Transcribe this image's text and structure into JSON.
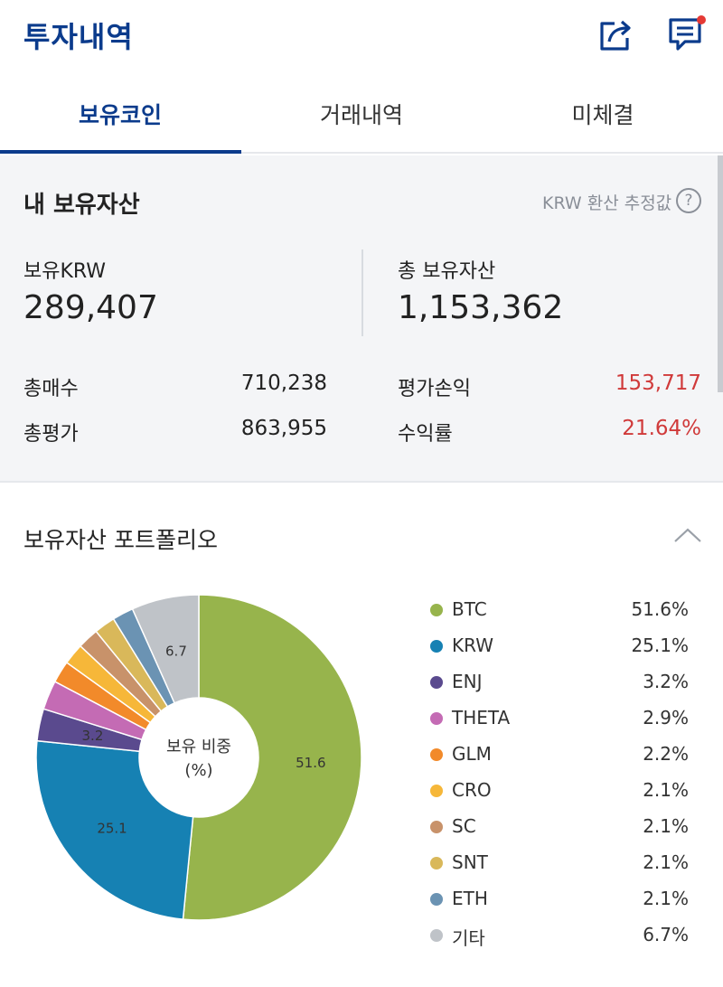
{
  "header": {
    "title": "투자내역",
    "share_icon": "share-icon",
    "chat_icon": "chat-icon"
  },
  "tabs": [
    {
      "label": "보유코인",
      "active": true
    },
    {
      "label": "거래내역",
      "active": false
    },
    {
      "label": "미체결",
      "active": false
    }
  ],
  "assets": {
    "title": "내 보유자산",
    "krw_estimate": "KRW 환산 추정값",
    "help": "?",
    "krw_label": "보유KRW",
    "krw_value": "289,407",
    "total_label": "총 보유자산",
    "total_value": "1,153,362",
    "buy_label": "총매수",
    "buy_value": "710,238",
    "eval_label": "총평가",
    "eval_value": "863,955",
    "pl_label": "평가손익",
    "pl_value": "153,717",
    "rate_label": "수익률",
    "rate_value": "21.64%"
  },
  "portfolio": {
    "title": "보유자산 포트폴리오",
    "center_line1": "보유 비중",
    "center_line2": "(%)",
    "colors": {
      "accent": "#0b3b8c",
      "profit": "#d03a3a"
    }
  },
  "chart_data": {
    "type": "pie",
    "categories": [
      "BTC",
      "KRW",
      "ENJ",
      "THETA",
      "GLM",
      "CRO",
      "SC",
      "SNT",
      "ETH",
      "기타"
    ],
    "values": [
      51.6,
      25.1,
      3.2,
      2.9,
      2.2,
      2.1,
      2.1,
      2.1,
      2.1,
      6.7
    ],
    "value_labels": [
      "51.6%",
      "25.1%",
      "3.2%",
      "2.9%",
      "2.2%",
      "2.1%",
      "2.1%",
      "2.1%",
      "2.1%",
      "6.7%"
    ],
    "slice_labels": [
      "51.6",
      "25.1",
      "3.2",
      "",
      "",
      "",
      "",
      "",
      "",
      "6.7"
    ],
    "colors": [
      "#97b44c",
      "#1681b3",
      "#5a4a8e",
      "#c46bb4",
      "#f28a2a",
      "#f6b739",
      "#c8926a",
      "#d9b85a",
      "#6b93b3",
      "#bfc3c8"
    ],
    "legend_position": "right"
  }
}
